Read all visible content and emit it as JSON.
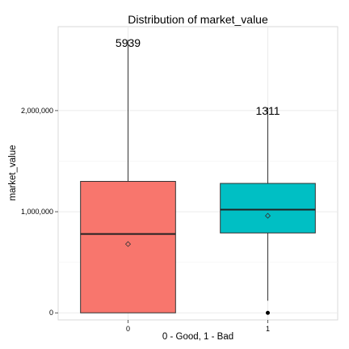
{
  "chart_data": {
    "type": "box",
    "title": "Distribution of market_value",
    "xlabel": "0 - Good, 1 - Bad",
    "ylabel": "market_value",
    "categories": [
      "0",
      "1"
    ],
    "yticks": [
      {
        "value": 0,
        "label": "0"
      },
      {
        "value": 1000000,
        "label": "1,000,000"
      },
      {
        "value": 2000000,
        "label": "2,000,000"
      }
    ],
    "ylim": [
      -70000,
      2830000
    ],
    "grid": true,
    "boxes": [
      {
        "category": "0",
        "color": "#F8766D",
        "min": 0,
        "q1": 0,
        "median": 780000,
        "q3": 1300000,
        "max": 2700000,
        "mean": 680000,
        "outliers": [],
        "count_label": "5939",
        "count_label_y": 2670000
      },
      {
        "category": "1",
        "color": "#00BFC4",
        "min": 120000,
        "q1": 790000,
        "median": 1020000,
        "q3": 1280000,
        "max": 2030000,
        "mean": 960000,
        "outliers": [
          0
        ],
        "count_label": "1311",
        "count_label_y": 2000000
      }
    ]
  }
}
